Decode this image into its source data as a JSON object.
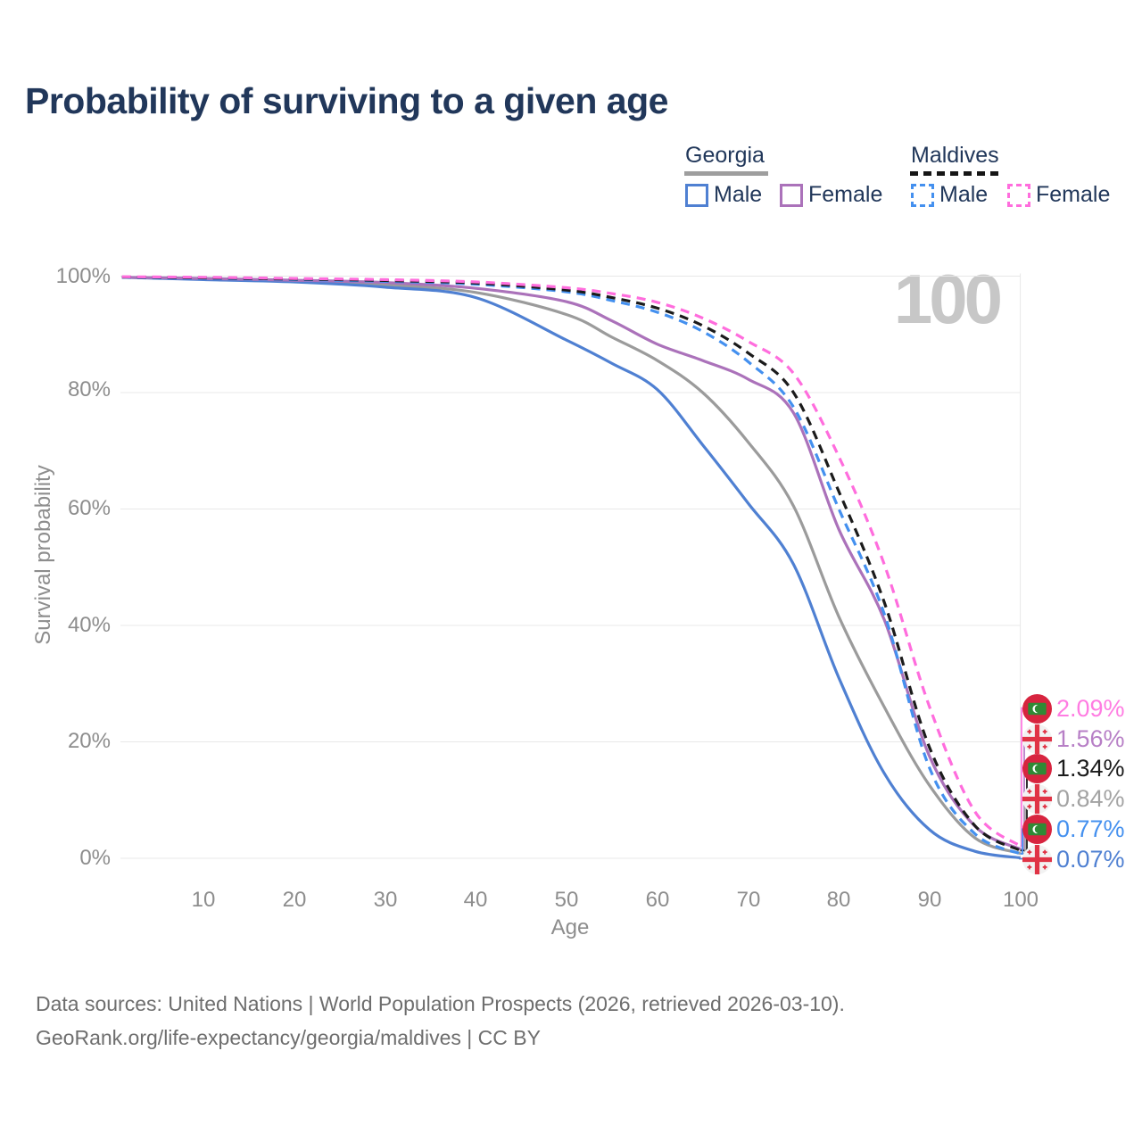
{
  "title": "Probability of surviving to a given age",
  "watermark": "100",
  "legend": {
    "groups": [
      {
        "label": "Georgia",
        "line_style": "solid",
        "items": [
          {
            "label": "Male",
            "color": "#4f80d2"
          },
          {
            "label": "Female",
            "color": "#ab72ba"
          }
        ]
      },
      {
        "label": "Maldives",
        "line_style": "dashed",
        "items": [
          {
            "label": "Male",
            "color": "#4490ef"
          },
          {
            "label": "Female",
            "color": "#ff6ddd"
          }
        ]
      }
    ]
  },
  "chart_data": {
    "type": "line",
    "title": "Probability of surviving to a given age",
    "xlabel": "Age",
    "ylabel": "Survival probability",
    "xlim": [
      0,
      100
    ],
    "ylim": [
      0,
      100
    ],
    "grid": "horizontal",
    "x_tick_labels": [
      "10",
      "20",
      "30",
      "40",
      "50",
      "60",
      "70",
      "80",
      "90",
      "100"
    ],
    "y_tick_labels": [
      "0%",
      "20%",
      "40%",
      "60%",
      "80%",
      "100%"
    ],
    "x": [
      1,
      10,
      20,
      30,
      40,
      50,
      55,
      60,
      65,
      70,
      75,
      80,
      85,
      90,
      95,
      100
    ],
    "series": [
      {
        "name": "Georgia Both sexes",
        "country": "Georgia",
        "group": "Both sexes",
        "style": "solid",
        "color": "#9b9b9b",
        "values": [
          99.8,
          99.5,
          99.2,
          98.5,
          97.2,
          93.4,
          89.5,
          85.5,
          80.0,
          71.5,
          60.5,
          41.5,
          26.0,
          12.5,
          3.5,
          0.84
        ],
        "end_label": "0.84%"
      },
      {
        "name": "Georgia Male",
        "country": "Georgia",
        "group": "Male",
        "style": "solid",
        "color": "#4f80d2",
        "values": [
          99.8,
          99.4,
          99.0,
          98.1,
          96.3,
          89.0,
          85.0,
          80.5,
          71.0,
          61.0,
          50.5,
          31.0,
          14.6,
          4.9,
          1.2,
          0.07
        ],
        "end_label": "0.07%"
      },
      {
        "name": "Georgia Female",
        "country": "Georgia",
        "group": "Female",
        "style": "solid",
        "color": "#ab72ba",
        "values": [
          99.8,
          99.6,
          99.3,
          98.9,
          97.9,
          95.6,
          92.3,
          88.3,
          85.5,
          82.3,
          76.5,
          56.5,
          41.0,
          17.5,
          5.5,
          1.56
        ],
        "end_label": "1.56%"
      },
      {
        "name": "Maldives Male",
        "country": "Maldives",
        "group": "Male",
        "style": "dashed",
        "color": "#4490ef",
        "values": [
          99.8,
          99.6,
          99.4,
          99.1,
          98.6,
          97.3,
          95.8,
          93.8,
          90.5,
          85.3,
          77.5,
          60.0,
          42.0,
          15.5,
          4.2,
          0.77
        ],
        "end_label": "0.77%"
      },
      {
        "name": "Maldives Both sexes",
        "country": "Maldives",
        "group": "Both sexes",
        "style": "dashed",
        "color": "#1b1b1b",
        "values": [
          99.85,
          99.7,
          99.5,
          99.25,
          98.8,
          97.6,
          96.3,
          94.5,
          91.5,
          86.8,
          80.0,
          63.0,
          44.0,
          19.0,
          5.6,
          1.34
        ],
        "end_label": "1.34%"
      },
      {
        "name": "Maldives Female",
        "country": "Maldives",
        "group": "Female",
        "style": "dashed",
        "color": "#ff6ddd",
        "values": [
          99.9,
          99.8,
          99.6,
          99.4,
          99.0,
          98.0,
          97.0,
          95.5,
          92.8,
          88.8,
          83.3,
          69.0,
          50.5,
          26.0,
          8.0,
          2.09
        ],
        "end_label": "2.09%"
      }
    ]
  },
  "end_labels": [
    {
      "value": "2.09%",
      "flag": "maldives",
      "series": "Maldives Female",
      "color": "#ff7ce2"
    },
    {
      "value": "1.56%",
      "flag": "georgia",
      "series": "Georgia Female",
      "color": "#b77fc6"
    },
    {
      "value": "1.34%",
      "flag": "maldives",
      "series": "Maldives Both sexes",
      "color": "#1b1b1b"
    },
    {
      "value": "0.84%",
      "flag": "georgia",
      "series": "Georgia Both sexes",
      "color": "#a3a3a3"
    },
    {
      "value": "0.77%",
      "flag": "maldives",
      "series": "Maldives Male",
      "color": "#4490ef"
    },
    {
      "value": "0.07%",
      "flag": "georgia",
      "series": "Georgia Male",
      "color": "#4f80d2"
    }
  ],
  "footer": {
    "line1": "Data sources: United Nations | World Population Prospects (2026, retrieved 2026-03-10).",
    "line2": "GeoRank.org/life-expectancy/georgia/maldives | CC BY"
  }
}
